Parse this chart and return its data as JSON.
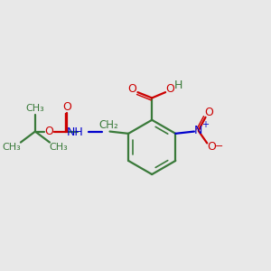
{
  "background_color": "#e8e8e8",
  "bond_color": "#3a7a3a",
  "red_color": "#cc0000",
  "blue_color": "#0000cc",
  "figsize": [
    3.0,
    3.0
  ],
  "dpi": 100,
  "xlim": [
    0,
    10
  ],
  "ylim": [
    0,
    10
  ]
}
